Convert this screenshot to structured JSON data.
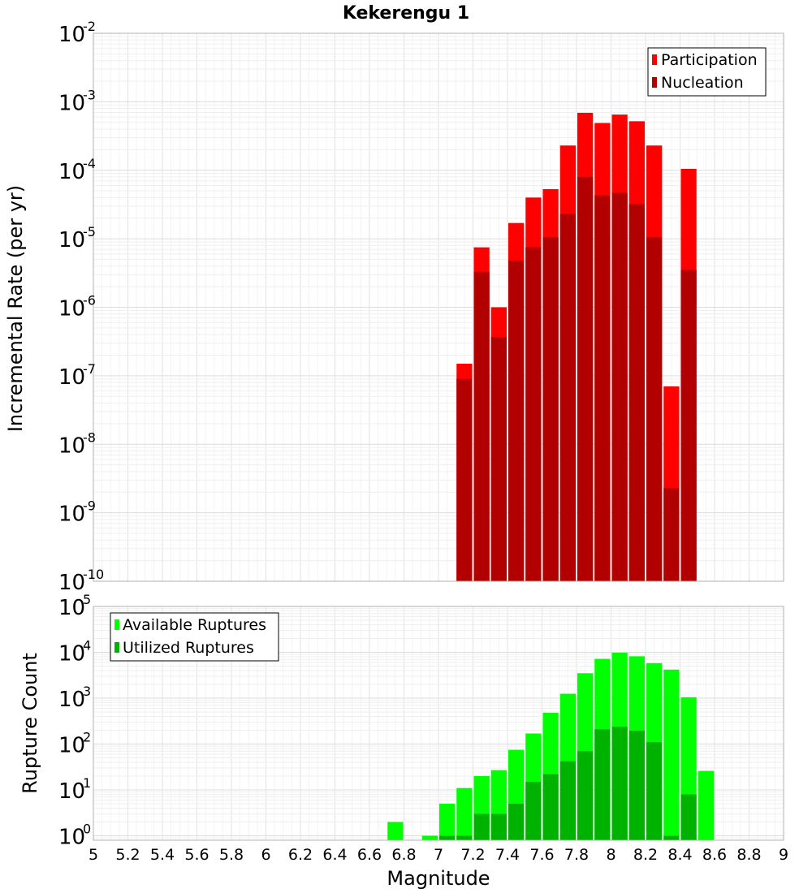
{
  "chart_data": [
    {
      "type": "bar",
      "title": "Kekerengu 1",
      "xlabel": "",
      "ylabel": "Incremental Rate (per yr)",
      "y_scale": "log",
      "xlim": [
        5,
        9
      ],
      "ylim": [
        1e-10,
        0.01
      ],
      "y_ticks": [
        {
          "base": "10",
          "exp": "-10"
        },
        {
          "base": "10",
          "exp": "-9"
        },
        {
          "base": "10",
          "exp": "-8"
        },
        {
          "base": "10",
          "exp": "-7"
        },
        {
          "base": "10",
          "exp": "-6"
        },
        {
          "base": "10",
          "exp": "-5"
        },
        {
          "base": "10",
          "exp": "-4"
        },
        {
          "base": "10",
          "exp": "-3"
        },
        {
          "base": "10",
          "exp": "-2"
        }
      ],
      "grid": true,
      "legend_position": "top-right",
      "x": [
        7.15,
        7.25,
        7.35,
        7.45,
        7.55,
        7.65,
        7.75,
        7.85,
        7.95,
        8.05,
        8.15,
        8.25,
        8.35,
        8.45
      ],
      "series": [
        {
          "name": "Participation",
          "color": "#ff0000",
          "values": [
            1.5e-07,
            7.5e-06,
            1e-06,
            1.7e-05,
            4e-05,
            5.3e-05,
            0.00023,
            0.00069,
            0.00049,
            0.00065,
            0.00052,
            0.00023,
            7e-08,
            0.000105
          ]
        },
        {
          "name": "Nucleation",
          "color": "#b20000",
          "values": [
            9e-08,
            3.3e-06,
            3.7e-07,
            4.8e-06,
            7.5e-06,
            1.05e-05,
            2.3e-05,
            8e-05,
            4.3e-05,
            4.7e-05,
            3.2e-05,
            1.05e-05,
            2.3e-09,
            3.5e-06
          ]
        }
      ]
    },
    {
      "type": "bar",
      "title": "",
      "xlabel": "Magnitude",
      "ylabel": "Rupture Count",
      "y_scale": "log",
      "xlim": [
        5,
        9
      ],
      "ylim": [
        0.8,
        100000.0
      ],
      "x_ticks": [
        "5",
        "5.2",
        "5.4",
        "5.6",
        "5.8",
        "6",
        "6.2",
        "6.4",
        "6.6",
        "6.8",
        "7",
        "7.2",
        "7.4",
        "7.6",
        "7.8",
        "8",
        "8.2",
        "8.4",
        "8.6",
        "8.8",
        "9"
      ],
      "y_ticks": [
        {
          "base": "10",
          "exp": "0"
        },
        {
          "base": "10",
          "exp": "1"
        },
        {
          "base": "10",
          "exp": "2"
        },
        {
          "base": "10",
          "exp": "3"
        },
        {
          "base": "10",
          "exp": "4"
        },
        {
          "base": "10",
          "exp": "5"
        }
      ],
      "grid": true,
      "legend_position": "top-left",
      "x": [
        6.75,
        6.85,
        6.95,
        7.05,
        7.15,
        7.25,
        7.35,
        7.45,
        7.55,
        7.65,
        7.75,
        7.85,
        7.95,
        8.05,
        8.15,
        8.25,
        8.35,
        8.45,
        8.55
      ],
      "series": [
        {
          "name": "Available Ruptures",
          "color": "#00ff00",
          "values": [
            2,
            null,
            1,
            5,
            11,
            20,
            27,
            75,
            170,
            480,
            1250,
            3500,
            7200,
            9800,
            8200,
            5800,
            4200,
            1050,
            26
          ]
        },
        {
          "name": "Utilized Ruptures",
          "color": "#00b200",
          "values": [
            null,
            null,
            null,
            1,
            1,
            3,
            3,
            5,
            15,
            22,
            42,
            70,
            210,
            240,
            195,
            110,
            1,
            8,
            null
          ]
        }
      ]
    }
  ]
}
